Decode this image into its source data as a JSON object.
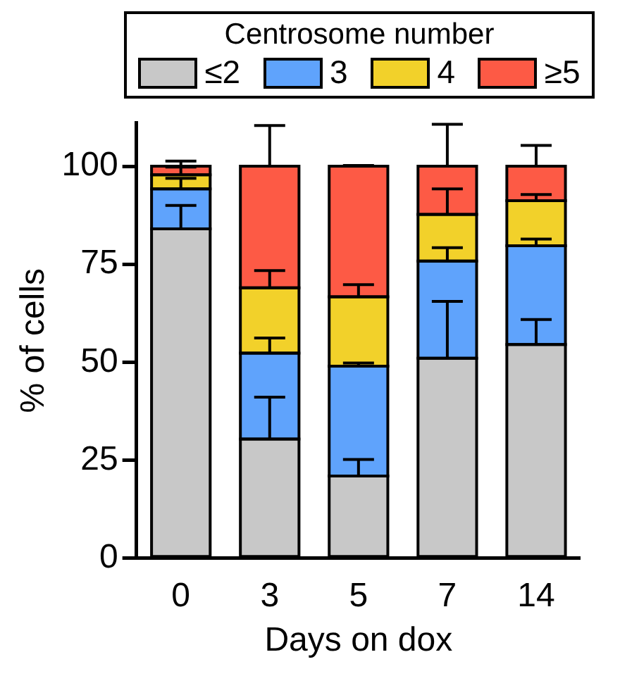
{
  "chart_data": {
    "type": "bar",
    "stacked": true,
    "xlabel": "Days on dox",
    "ylabel": "% of cells",
    "legend_title": "Centrosome number",
    "legend": "top",
    "categories": [
      "0",
      "3",
      "5",
      "7",
      "14"
    ],
    "series": [
      {
        "name": "≤2",
        "color": "#c8c8c8",
        "values": [
          84,
          30.4,
          21,
          51,
          54.5
        ],
        "errors": [
          [
            84,
            90
          ],
          [
            30.4,
            41.1
          ],
          [
            21,
            25.2
          ],
          [
            51,
            65.5
          ],
          [
            54.5,
            60.9
          ]
        ]
      },
      {
        "name": "3",
        "color": "#5fa3fc",
        "values": [
          10.2,
          21.9,
          28,
          24.8,
          25.2
        ],
        "errors": [
          [
            94.2,
            96.9
          ],
          [
            52.3,
            56.2
          ],
          [
            49,
            49.8
          ],
          [
            75.8,
            79.2
          ],
          [
            79.7,
            81.4
          ]
        ]
      },
      {
        "name": "4",
        "color": "#f2d12a",
        "values": [
          3.6,
          16.7,
          17.7,
          11.9,
          11.5
        ],
        "errors": [
          [
            97.8,
            99.8
          ],
          [
            69,
            73.4
          ],
          [
            66.7,
            69.8
          ],
          [
            87.7,
            94.2
          ],
          [
            91.2,
            92.8
          ]
        ]
      },
      {
        "name": "≥5",
        "color": "#fd5a45",
        "values": [
          2.2,
          31,
          33.3,
          12.3,
          8.8
        ],
        "errors": [
          [
            100,
            101.3
          ],
          [
            100,
            110.4
          ],
          [
            100,
            100.2
          ],
          [
            100,
            110.7
          ],
          [
            100,
            105.3
          ]
        ]
      }
    ],
    "ylim": [
      0,
      111
    ],
    "yticks": [
      0,
      25,
      50,
      75,
      100
    ],
    "grid": false
  }
}
